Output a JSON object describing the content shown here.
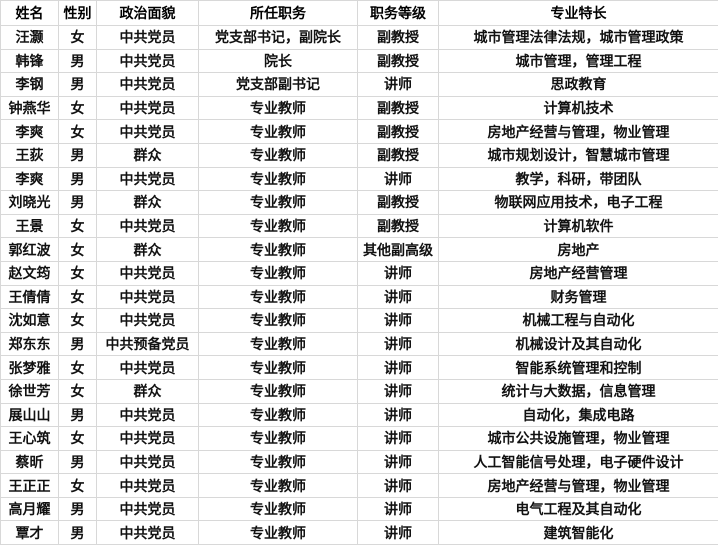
{
  "table": {
    "headers": [
      "姓名",
      "性别",
      "政治面貌",
      "所任职务",
      "职务等级",
      "专业特长"
    ],
    "rows": [
      [
        "汪灏",
        "女",
        "中共党员",
        "党支部书记，副院长",
        "副教授",
        "城市管理法律法规，城市管理政策"
      ],
      [
        "韩锋",
        "男",
        "中共党员",
        "院长",
        "副教授",
        "城市管理，管理工程"
      ],
      [
        "李钢",
        "男",
        "中共党员",
        "党支部副书记",
        "讲师",
        "思政教育"
      ],
      [
        "钟燕华",
        "女",
        "中共党员",
        "专业教师",
        "副教授",
        "计算机技术"
      ],
      [
        "李爽",
        "女",
        "中共党员",
        "专业教师",
        "副教授",
        "房地产经营与管理，物业管理"
      ],
      [
        "王荻",
        "男",
        "群众",
        "专业教师",
        "副教授",
        "城市规划设计，智慧城市管理"
      ],
      [
        "李爽",
        "男",
        "中共党员",
        "专业教师",
        "讲师",
        "教学，科研，带团队"
      ],
      [
        "刘晓光",
        "男",
        "群众",
        "专业教师",
        "副教授",
        "物联网应用技术，电子工程"
      ],
      [
        "王景",
        "女",
        "中共党员",
        "专业教师",
        "副教授",
        "计算机软件"
      ],
      [
        "郭红波",
        "女",
        "群众",
        "专业教师",
        "其他副高级",
        "房地产"
      ],
      [
        "赵文筠",
        "女",
        "中共党员",
        "专业教师",
        "讲师",
        "房地产经营管理"
      ],
      [
        "王倩倩",
        "女",
        "中共党员",
        "专业教师",
        "讲师",
        "财务管理"
      ],
      [
        "沈如意",
        "女",
        "中共党员",
        "专业教师",
        "讲师",
        "机械工程与自动化"
      ],
      [
        "郑东东",
        "男",
        "中共预备党员",
        "专业教师",
        "讲师",
        "机械设计及其自动化"
      ],
      [
        "张梦雅",
        "女",
        "中共党员",
        "专业教师",
        "讲师",
        "智能系统管理和控制"
      ],
      [
        "徐世芳",
        "女",
        "群众",
        "专业教师",
        "讲师",
        "统计与大数据，信息管理"
      ],
      [
        "展山山",
        "男",
        "中共党员",
        "专业教师",
        "讲师",
        "自动化，集成电路"
      ],
      [
        "王心筑",
        "女",
        "中共党员",
        "专业教师",
        "讲师",
        "城市公共设施管理，物业管理"
      ],
      [
        "蔡昕",
        "男",
        "中共党员",
        "专业教师",
        "讲师",
        "人工智能信号处理，电子硬件设计"
      ],
      [
        "王正正",
        "女",
        "中共党员",
        "专业教师",
        "讲师",
        "房地产经营与管理，物业管理"
      ],
      [
        "高月耀",
        "男",
        "中共党员",
        "专业教师",
        "讲师",
        "电气工程及其自动化"
      ],
      [
        "覃才",
        "男",
        "中共党员",
        "专业教师",
        "讲师",
        "建筑智能化"
      ]
    ],
    "column_keys": [
      "name",
      "gender",
      "political-status",
      "position",
      "job-level",
      "specialty"
    ]
  },
  "colors": {
    "grid_border": "#d8d8d8",
    "text": "#111111",
    "background": "#ffffff"
  }
}
